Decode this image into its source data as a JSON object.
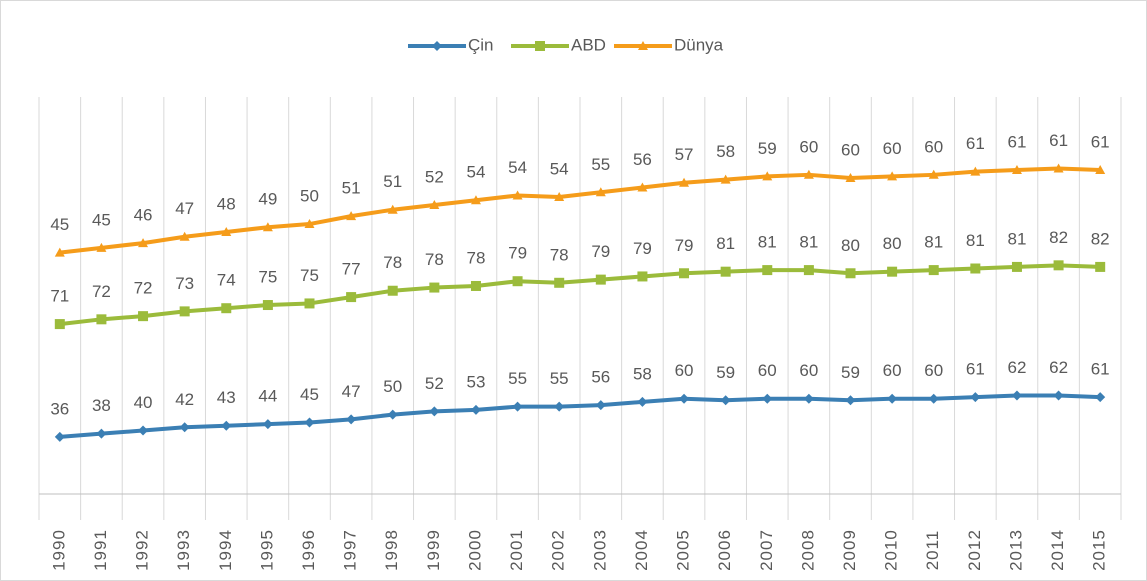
{
  "chart_data": {
    "type": "line",
    "stacked": true,
    "categories": [
      "1990",
      "1991",
      "1992",
      "1993",
      "1994",
      "1995",
      "1996",
      "1997",
      "1998",
      "1999",
      "2000",
      "2001",
      "2002",
      "2003",
      "2004",
      "2005",
      "2006",
      "2007",
      "2008",
      "2009",
      "2010",
      "2011",
      "2012",
      "2013",
      "2014",
      "2015"
    ],
    "series": [
      {
        "name": "Çin",
        "color": "#3b7fb4",
        "marker": "diamond",
        "values": [
          36,
          38,
          40,
          42,
          43,
          44,
          45,
          47,
          50,
          52,
          53,
          55,
          55,
          56,
          58,
          60,
          59,
          60,
          60,
          59,
          60,
          60,
          61,
          62,
          62,
          61
        ]
      },
      {
        "name": "ABD",
        "color": "#9bbb3b",
        "marker": "square",
        "values": [
          71,
          72,
          72,
          73,
          74,
          75,
          75,
          77,
          78,
          78,
          78,
          79,
          78,
          79,
          79,
          79,
          81,
          81,
          81,
          80,
          80,
          81,
          81,
          81,
          82,
          82
        ]
      },
      {
        "name": "Dünya",
        "color": "#f59c1a",
        "marker": "triangle",
        "values": [
          45,
          45,
          46,
          47,
          48,
          49,
          50,
          51,
          51,
          52,
          54,
          54,
          54,
          55,
          56,
          57,
          58,
          59,
          60,
          60,
          60,
          60,
          61,
          61,
          61,
          61
        ]
      }
    ],
    "ylim": [
      0,
      250
    ],
    "grid": true,
    "legend": "top"
  }
}
